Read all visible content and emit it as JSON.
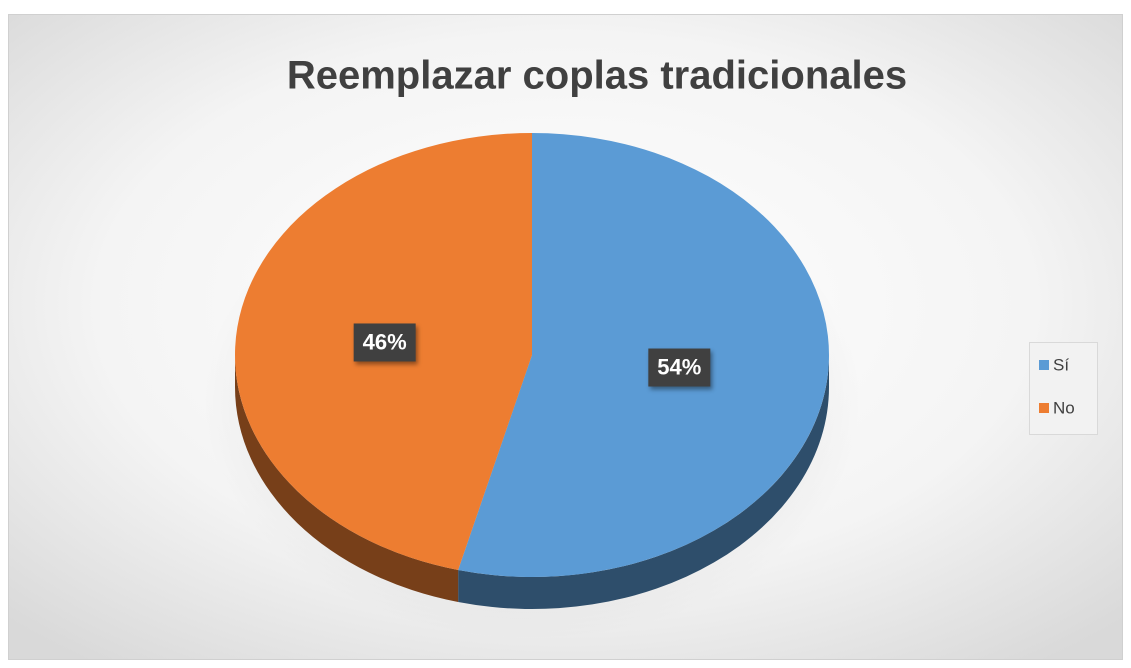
{
  "chart_data": {
    "type": "pie",
    "title": "Reemplazar coplas tradicionales",
    "categories": [
      "Sí",
      "No"
    ],
    "values": [
      54,
      46
    ],
    "value_labels": [
      "54%",
      "46%"
    ],
    "colors": [
      "#5b9bd5",
      "#ed7d31"
    ],
    "legend": "right"
  }
}
